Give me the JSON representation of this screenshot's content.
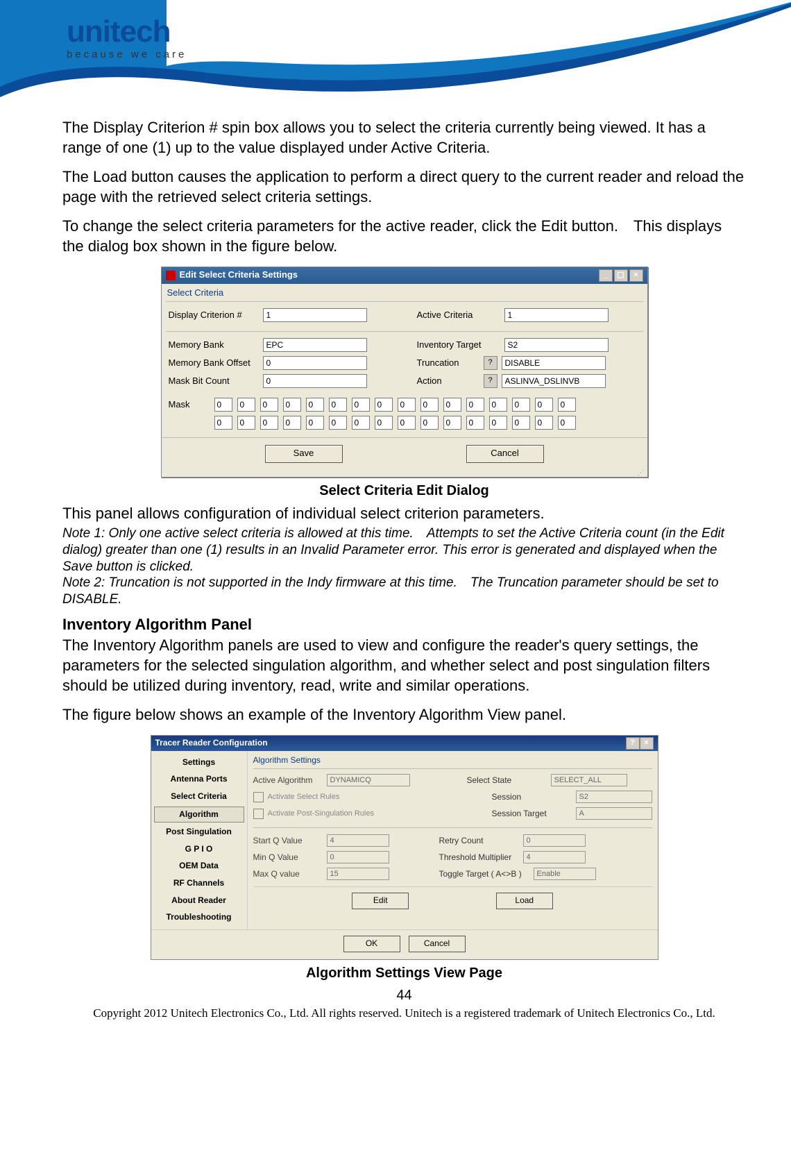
{
  "brand": {
    "name": "unitech",
    "tagline": "because we care",
    "swoosh_color": "#0a4b9a",
    "swoosh_color2": "#1176c0"
  },
  "para1": "The Display Criterion # spin box allows you to select the criteria currently being viewed. It has a range of one (1) up to the value displayed under Active Criteria.",
  "para2": "The Load button causes the application to perform a direct query to the current reader and reload the page with the retrieved select criteria settings.",
  "para3": "To change the select criteria parameters for the active reader, click the Edit button. This displays the dialog box shown in the figure below.",
  "dialog1": {
    "title": "Edit Select Criteria Settings",
    "group": "Select Criteria",
    "labels": {
      "display_criterion": "Display Criterion #",
      "active_criteria": "Active Criteria",
      "memory_bank": "Memory Bank",
      "inventory_target": "Inventory Target",
      "memory_bank_offset": "Memory Bank Offset",
      "truncation": "Truncation",
      "mask_bit_count": "Mask Bit Count",
      "action": "Action",
      "mask": "Mask"
    },
    "values": {
      "display_criterion": "1",
      "active_criteria": "1",
      "memory_bank": "EPC",
      "inventory_target": "S2",
      "memory_bank_offset": "0",
      "truncation": "DISABLE",
      "mask_bit_count": "0",
      "action": "ASLINVA_DSLINVB"
    },
    "mask_row1": [
      "0",
      "0",
      "0",
      "0",
      "0",
      "0",
      "0",
      "0",
      "0",
      "0",
      "0",
      "0",
      "0",
      "0",
      "0",
      "0"
    ],
    "mask_row2": [
      "0",
      "0",
      "0",
      "0",
      "0",
      "0",
      "0",
      "0",
      "0",
      "0",
      "0",
      "0",
      "0",
      "0",
      "0",
      "0"
    ],
    "buttons": {
      "save": "Save",
      "cancel": "Cancel"
    }
  },
  "caption1": "Select Criteria Edit Dialog",
  "para4": "This panel allows configuration of individual select criterion parameters.",
  "note1": "Note 1: Only one active select criteria is allowed at this time. Attempts to set the Active Criteria count (in the Edit dialog) greater than one (1) results in an Invalid Parameter error. This error is generated and displayed when the Save button is clicked.",
  "note2": "Note 2: Truncation is not supported in the Indy firmware at this time. The Truncation parameter should be set to DISABLE.",
  "section2": "Inventory Algorithm Panel",
  "para5": "The Inventory Algorithm panels are used to view and configure the reader's query settings, the parameters for the selected singulation algorithm, and whether select and post singulation filters should be utilized during inventory, read, write and similar operations.",
  "para6": "The figure below shows an example of the Inventory Algorithm View panel.",
  "dialog2": {
    "title": "Tracer Reader Configuration",
    "sidebar": [
      "Settings",
      "Antenna Ports",
      "Select Criteria",
      "Algorithm",
      "Post Singulation",
      "G P I O",
      "OEM Data",
      "RF Channels",
      "About Reader",
      "Troubleshooting"
    ],
    "sidebar_selected_index": 3,
    "panel_title": "Algorithm Settings",
    "labels": {
      "active_algorithm": "Active Algorithm",
      "activate_select": "Activate Select Rules",
      "activate_post": "Activate Post-Singulation Rules",
      "select_state": "Select State",
      "session": "Session",
      "session_target": "Session Target",
      "start_q": "Start Q Value",
      "retry_count": "Retry Count",
      "min_q": "Min Q Value",
      "threshold_mult": "Threshold Multiplier",
      "max_q": "Max Q value",
      "toggle_target": "Toggle Target ( A<>B )"
    },
    "values": {
      "active_algorithm": "DYNAMICQ",
      "select_state": "SELECT_ALL",
      "session": "S2",
      "session_target": "A",
      "start_q": "4",
      "retry_count": "0",
      "min_q": "0",
      "threshold_mult": "4",
      "max_q": "15",
      "toggle_target": "Enable"
    },
    "buttons": {
      "edit": "Edit",
      "load": "Load",
      "ok": "OK",
      "cancel": "Cancel"
    }
  },
  "caption2": "Algorithm Settings View Page",
  "page_number": "44",
  "copyright": "Copyright 2012 Unitech Electronics Co., Ltd. All rights reserved. Unitech is a registered trademark of Unitech Electronics Co., Ltd."
}
